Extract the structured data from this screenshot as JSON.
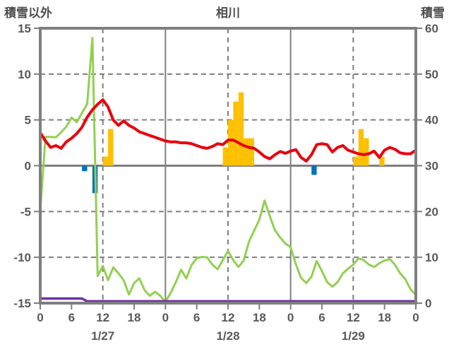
{
  "header": {
    "left_axis_title": "積雪以外",
    "chart_title": "相川",
    "right_axis_title": "積雪"
  },
  "colors": {
    "red": "#e8000d",
    "green": "#92d050",
    "purple": "#7030a0",
    "orange": "#ffc000",
    "blue": "#0070c0",
    "grid": "#7f7f7f",
    "frame": "#7f7f7f",
    "text": "#595959"
  },
  "chart_data": {
    "type": "line+bar",
    "title": "相川",
    "left_axis": {
      "title": "積雪以外",
      "min": -15,
      "max": 15,
      "ticks": [
        15,
        10,
        5,
        0,
        -5,
        -10,
        -15
      ]
    },
    "right_axis": {
      "title": "積雪",
      "min": 0,
      "max": 60,
      "ticks": [
        60,
        50,
        40,
        30,
        20,
        10,
        0
      ]
    },
    "x_axis": {
      "total_hours": 72,
      "tick_every_hours": 6,
      "hour_tick_labels": [
        "0",
        "6",
        "12",
        "18"
      ],
      "final_tick_label": "0",
      "date_labels": [
        "1/27",
        "1/28",
        "1/29"
      ]
    },
    "grid": {
      "horizontal_dashed_at_left_values": [
        10,
        5,
        -5,
        -10
      ],
      "zero_line_left_value": 0,
      "vertical_solid_at_hours": [
        24,
        48
      ],
      "vertical_dashed_at_hours": [
        12,
        36,
        60
      ]
    },
    "series": [
      {
        "id": "blue-bars",
        "type": "bar",
        "axis": "left",
        "color": "#0070c0",
        "bars": [
          {
            "hour": 8,
            "value": -0.6
          },
          {
            "hour": 10,
            "value": -3
          },
          {
            "hour": 52,
            "value": -1
          }
        ]
      },
      {
        "id": "orange-bars",
        "type": "bar",
        "axis": "left",
        "color": "#ffc000",
        "bars": [
          {
            "hour": 12,
            "value": 1
          },
          {
            "hour": 13,
            "value": 4
          },
          {
            "hour": 35,
            "value": 2
          },
          {
            "hour": 36,
            "value": 5
          },
          {
            "hour": 37,
            "value": 7
          },
          {
            "hour": 38,
            "value": 8
          },
          {
            "hour": 39,
            "value": 3
          },
          {
            "hour": 40,
            "value": 3
          },
          {
            "hour": 60,
            "value": 1
          },
          {
            "hour": 61,
            "value": 4
          },
          {
            "hour": 62,
            "value": 3
          },
          {
            "hour": 65,
            "value": 1
          }
        ]
      },
      {
        "id": "green-line",
        "type": "line",
        "axis": "right",
        "color": "#92d050",
        "width": 3,
        "values_by_hour": [
          20.2,
          36.3,
          36.3,
          36.2,
          37.3,
          38.5,
          40.5,
          39.5,
          41.5,
          43.5,
          57.9,
          5.9,
          8.1,
          5.0,
          7.8,
          6.5,
          5.0,
          1.9,
          4.4,
          5.4,
          2.8,
          1.6,
          2.5,
          1.6,
          0.3,
          2.2,
          4.6,
          7.3,
          5.4,
          8.3,
          9.8,
          10.1,
          10.0,
          8.4,
          7.4,
          9.4,
          11.4,
          9.4,
          7.9,
          9.3,
          13.4,
          15.8,
          18.2,
          22.4,
          19.0,
          15.9,
          14.3,
          13.0,
          12.2,
          8.5,
          5.5,
          4.4,
          5.8,
          9.2,
          7.0,
          4.6,
          3.6,
          4.6,
          6.5,
          7.5,
          8.4,
          9.8,
          9.4,
          8.4,
          7.9,
          8.7,
          9.3,
          9.6,
          8.4,
          6.5,
          5.2,
          3.0,
          1.8
        ]
      },
      {
        "id": "purple-line",
        "type": "line",
        "axis": "right",
        "color": "#7030a0",
        "width": 3.5,
        "values_by_hour": [
          1,
          1,
          1,
          1,
          1,
          1,
          1,
          1,
          1,
          0.4,
          0.4,
          0.4,
          0.4,
          0.4,
          0.4,
          0.4,
          0.4,
          0.4,
          0.4,
          0.4,
          0.4,
          0.4,
          0.4,
          0.4,
          0.4,
          0.4,
          0.4,
          0.4,
          0.4,
          0.4,
          0.4,
          0.4,
          0.4,
          0.4,
          0.4,
          0.4,
          0.4,
          0.4,
          0.4,
          0.4,
          0.4,
          0.4,
          0.4,
          0.4,
          0.4,
          0.4,
          0.4,
          0.4,
          0.4,
          0.4,
          0.4,
          0.4,
          0.4,
          0.4,
          0.4,
          0.4,
          0.4,
          0.4,
          0.4,
          0.4,
          0.4,
          0.4,
          0.4,
          0.4,
          0.4,
          0.4,
          0.4,
          0.4,
          0.4,
          0.4,
          0.4,
          0.4,
          0.4
        ]
      },
      {
        "id": "red-line",
        "type": "line",
        "axis": "left",
        "color": "#e8000d",
        "width": 4,
        "values_by_hour": [
          3.6,
          2.7,
          2.0,
          2.2,
          1.9,
          2.6,
          3.0,
          3.5,
          4.2,
          5.3,
          6.1,
          6.7,
          7.2,
          6.4,
          5.0,
          4.4,
          4.9,
          4.4,
          4.1,
          3.7,
          3.5,
          3.3,
          3.1,
          2.9,
          2.7,
          2.6,
          2.6,
          2.5,
          2.5,
          2.4,
          2.2,
          2.0,
          1.9,
          2.1,
          2.4,
          2.3,
          2.8,
          2.8,
          2.5,
          2.2,
          2.0,
          1.9,
          1.5,
          1.0,
          0.75,
          1.2,
          1.55,
          1.35,
          1.6,
          1.75,
          0.9,
          0.5,
          1.2,
          2.3,
          2.4,
          2.3,
          1.5,
          2.0,
          2.2,
          1.7,
          1.5,
          1.3,
          1.2,
          1.3,
          1.6,
          0.9,
          1.7,
          2.0,
          1.8,
          1.4,
          1.3,
          1.3,
          1.7
        ]
      }
    ]
  }
}
